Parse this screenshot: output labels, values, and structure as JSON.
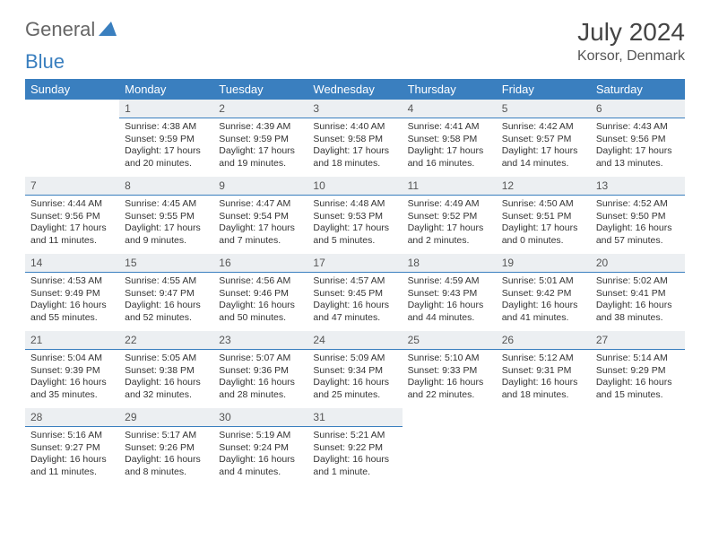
{
  "logo": {
    "general": "General",
    "blue": "Blue"
  },
  "title": "July 2024",
  "location": "Korsor, Denmark",
  "colors": {
    "header_bg": "#3a7fbf",
    "header_text": "#ffffff",
    "daynum_bg": "#eceff2",
    "day_border": "#3a7fbf",
    "page_bg": "#ffffff"
  },
  "weekdays": [
    "Sunday",
    "Monday",
    "Tuesday",
    "Wednesday",
    "Thursday",
    "Friday",
    "Saturday"
  ],
  "weeks": [
    [
      {
        "n": "",
        "sunrise": "",
        "sunset": "",
        "daylight": "",
        "empty": true
      },
      {
        "n": "1",
        "sunrise": "Sunrise: 4:38 AM",
        "sunset": "Sunset: 9:59 PM",
        "daylight": "Daylight: 17 hours and 20 minutes."
      },
      {
        "n": "2",
        "sunrise": "Sunrise: 4:39 AM",
        "sunset": "Sunset: 9:59 PM",
        "daylight": "Daylight: 17 hours and 19 minutes."
      },
      {
        "n": "3",
        "sunrise": "Sunrise: 4:40 AM",
        "sunset": "Sunset: 9:58 PM",
        "daylight": "Daylight: 17 hours and 18 minutes."
      },
      {
        "n": "4",
        "sunrise": "Sunrise: 4:41 AM",
        "sunset": "Sunset: 9:58 PM",
        "daylight": "Daylight: 17 hours and 16 minutes."
      },
      {
        "n": "5",
        "sunrise": "Sunrise: 4:42 AM",
        "sunset": "Sunset: 9:57 PM",
        "daylight": "Daylight: 17 hours and 14 minutes."
      },
      {
        "n": "6",
        "sunrise": "Sunrise: 4:43 AM",
        "sunset": "Sunset: 9:56 PM",
        "daylight": "Daylight: 17 hours and 13 minutes."
      }
    ],
    [
      {
        "n": "7",
        "sunrise": "Sunrise: 4:44 AM",
        "sunset": "Sunset: 9:56 PM",
        "daylight": "Daylight: 17 hours and 11 minutes."
      },
      {
        "n": "8",
        "sunrise": "Sunrise: 4:45 AM",
        "sunset": "Sunset: 9:55 PM",
        "daylight": "Daylight: 17 hours and 9 minutes."
      },
      {
        "n": "9",
        "sunrise": "Sunrise: 4:47 AM",
        "sunset": "Sunset: 9:54 PM",
        "daylight": "Daylight: 17 hours and 7 minutes."
      },
      {
        "n": "10",
        "sunrise": "Sunrise: 4:48 AM",
        "sunset": "Sunset: 9:53 PM",
        "daylight": "Daylight: 17 hours and 5 minutes."
      },
      {
        "n": "11",
        "sunrise": "Sunrise: 4:49 AM",
        "sunset": "Sunset: 9:52 PM",
        "daylight": "Daylight: 17 hours and 2 minutes."
      },
      {
        "n": "12",
        "sunrise": "Sunrise: 4:50 AM",
        "sunset": "Sunset: 9:51 PM",
        "daylight": "Daylight: 17 hours and 0 minutes."
      },
      {
        "n": "13",
        "sunrise": "Sunrise: 4:52 AM",
        "sunset": "Sunset: 9:50 PM",
        "daylight": "Daylight: 16 hours and 57 minutes."
      }
    ],
    [
      {
        "n": "14",
        "sunrise": "Sunrise: 4:53 AM",
        "sunset": "Sunset: 9:49 PM",
        "daylight": "Daylight: 16 hours and 55 minutes."
      },
      {
        "n": "15",
        "sunrise": "Sunrise: 4:55 AM",
        "sunset": "Sunset: 9:47 PM",
        "daylight": "Daylight: 16 hours and 52 minutes."
      },
      {
        "n": "16",
        "sunrise": "Sunrise: 4:56 AM",
        "sunset": "Sunset: 9:46 PM",
        "daylight": "Daylight: 16 hours and 50 minutes."
      },
      {
        "n": "17",
        "sunrise": "Sunrise: 4:57 AM",
        "sunset": "Sunset: 9:45 PM",
        "daylight": "Daylight: 16 hours and 47 minutes."
      },
      {
        "n": "18",
        "sunrise": "Sunrise: 4:59 AM",
        "sunset": "Sunset: 9:43 PM",
        "daylight": "Daylight: 16 hours and 44 minutes."
      },
      {
        "n": "19",
        "sunrise": "Sunrise: 5:01 AM",
        "sunset": "Sunset: 9:42 PM",
        "daylight": "Daylight: 16 hours and 41 minutes."
      },
      {
        "n": "20",
        "sunrise": "Sunrise: 5:02 AM",
        "sunset": "Sunset: 9:41 PM",
        "daylight": "Daylight: 16 hours and 38 minutes."
      }
    ],
    [
      {
        "n": "21",
        "sunrise": "Sunrise: 5:04 AM",
        "sunset": "Sunset: 9:39 PM",
        "daylight": "Daylight: 16 hours and 35 minutes."
      },
      {
        "n": "22",
        "sunrise": "Sunrise: 5:05 AM",
        "sunset": "Sunset: 9:38 PM",
        "daylight": "Daylight: 16 hours and 32 minutes."
      },
      {
        "n": "23",
        "sunrise": "Sunrise: 5:07 AM",
        "sunset": "Sunset: 9:36 PM",
        "daylight": "Daylight: 16 hours and 28 minutes."
      },
      {
        "n": "24",
        "sunrise": "Sunrise: 5:09 AM",
        "sunset": "Sunset: 9:34 PM",
        "daylight": "Daylight: 16 hours and 25 minutes."
      },
      {
        "n": "25",
        "sunrise": "Sunrise: 5:10 AM",
        "sunset": "Sunset: 9:33 PM",
        "daylight": "Daylight: 16 hours and 22 minutes."
      },
      {
        "n": "26",
        "sunrise": "Sunrise: 5:12 AM",
        "sunset": "Sunset: 9:31 PM",
        "daylight": "Daylight: 16 hours and 18 minutes."
      },
      {
        "n": "27",
        "sunrise": "Sunrise: 5:14 AM",
        "sunset": "Sunset: 9:29 PM",
        "daylight": "Daylight: 16 hours and 15 minutes."
      }
    ],
    [
      {
        "n": "28",
        "sunrise": "Sunrise: 5:16 AM",
        "sunset": "Sunset: 9:27 PM",
        "daylight": "Daylight: 16 hours and 11 minutes."
      },
      {
        "n": "29",
        "sunrise": "Sunrise: 5:17 AM",
        "sunset": "Sunset: 9:26 PM",
        "daylight": "Daylight: 16 hours and 8 minutes."
      },
      {
        "n": "30",
        "sunrise": "Sunrise: 5:19 AM",
        "sunset": "Sunset: 9:24 PM",
        "daylight": "Daylight: 16 hours and 4 minutes."
      },
      {
        "n": "31",
        "sunrise": "Sunrise: 5:21 AM",
        "sunset": "Sunset: 9:22 PM",
        "daylight": "Daylight: 16 hours and 1 minute."
      },
      {
        "n": "",
        "sunrise": "",
        "sunset": "",
        "daylight": "",
        "empty": true
      },
      {
        "n": "",
        "sunrise": "",
        "sunset": "",
        "daylight": "",
        "empty": true
      },
      {
        "n": "",
        "sunrise": "",
        "sunset": "",
        "daylight": "",
        "empty": true
      }
    ]
  ]
}
